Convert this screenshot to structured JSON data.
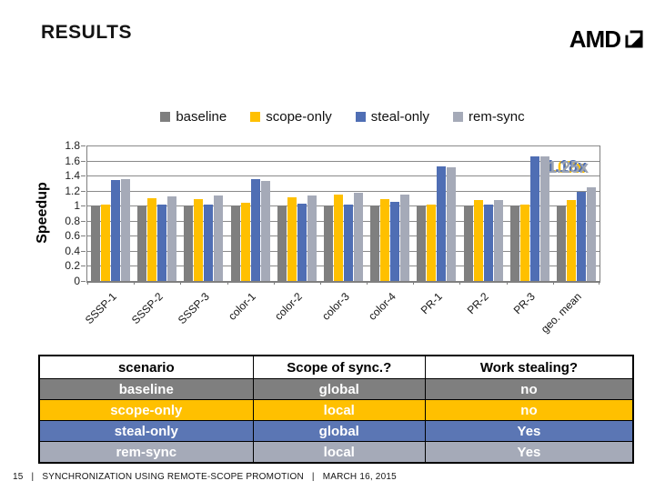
{
  "header": {
    "title": "RESULTS",
    "logo_text": "AMD"
  },
  "chart_data": {
    "type": "bar",
    "title": "",
    "xlabel": "",
    "ylabel": "Speedup",
    "ylim": [
      0,
      1.8
    ],
    "ytick_step": 0.2,
    "grid": true,
    "legend_position": "top",
    "categories": [
      "SSSP-1",
      "SSSP-2",
      "SSSP-3",
      "color-1",
      "color-2",
      "color-3",
      "color-4",
      "PR-1",
      "PR-2",
      "PR-3",
      "geo. mean"
    ],
    "series": [
      {
        "name": "baseline",
        "color": "#7F7F7F",
        "values": [
          1.0,
          1.0,
          1.0,
          1.0,
          1.0,
          1.0,
          1.0,
          1.0,
          1.0,
          1.0,
          1.0
        ]
      },
      {
        "name": "scope-only",
        "color": "#FFC000",
        "values": [
          1.02,
          1.1,
          1.09,
          1.04,
          1.11,
          1.15,
          1.09,
          1.02,
          1.08,
          1.01,
          1.07
        ]
      },
      {
        "name": "steal-only",
        "color": "#4F6EB4",
        "values": [
          1.34,
          1.01,
          1.02,
          1.35,
          1.03,
          1.02,
          1.05,
          1.52,
          1.01,
          1.66,
          1.18
        ]
      },
      {
        "name": "rem-sync",
        "color": "#A5AAB8",
        "values": [
          1.35,
          1.12,
          1.13,
          1.33,
          1.13,
          1.17,
          1.15,
          1.51,
          1.08,
          1.65,
          1.25
        ]
      }
    ],
    "annotations": [
      {
        "text": "1.07x",
        "color": "#FFC000"
      },
      {
        "text": "1.18x",
        "color": "#4F6EB4"
      },
      {
        "text": "1.25x",
        "color": "#9BA3B2"
      }
    ]
  },
  "table": {
    "headers": [
      "scenario",
      "Scope of sync.?",
      "Work stealing?"
    ],
    "rows": [
      {
        "cells": [
          "baseline",
          "global",
          "no"
        ],
        "bg": "#7F7F7F"
      },
      {
        "cells": [
          "scope-only",
          "local",
          "no"
        ],
        "bg": "#FFC000"
      },
      {
        "cells": [
          "steal-only",
          "global",
          "Yes"
        ],
        "bg": "#5B76B4"
      },
      {
        "cells": [
          "rem-sync",
          "local",
          "Yes"
        ],
        "bg": "#A5AAB8"
      }
    ]
  },
  "footer": {
    "page": "15",
    "sep": "|",
    "title": "SYNCHRONIZATION USING REMOTE-SCOPE PROMOTION",
    "date": "MARCH 16, 2015"
  }
}
